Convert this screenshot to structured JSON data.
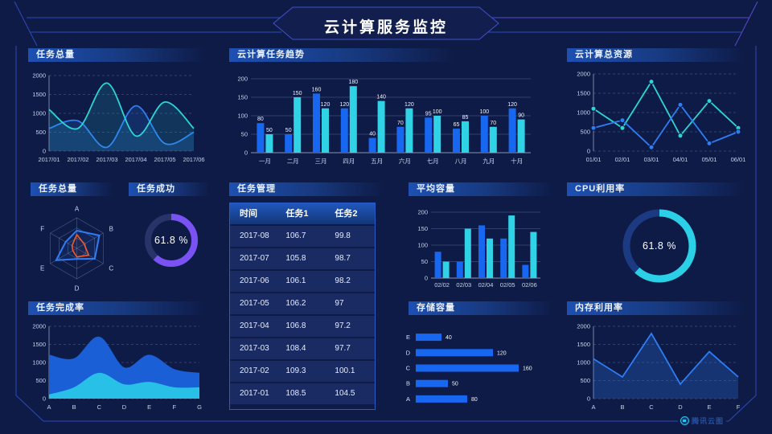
{
  "page": {
    "title": "云计算服务监控"
  },
  "watermark": {
    "label": "腾讯云图"
  },
  "panels": {
    "task_total_line": {
      "title": "任务总量"
    },
    "task_trend": {
      "title": "云计算任务趋势"
    },
    "total_resources": {
      "title": "云计算总资源"
    },
    "task_total_radar": {
      "title": "任务总量"
    },
    "task_success": {
      "title": "任务成功"
    },
    "task_management": {
      "title": "任务管理"
    },
    "avg_capacity": {
      "title": "平均容量"
    },
    "cpu_usage": {
      "title": "CPU利用率"
    },
    "task_completion": {
      "title": "任务完成率"
    },
    "storage_capacity": {
      "title": "存储容量"
    },
    "memory_usage": {
      "title": "内存利用率"
    }
  },
  "table": {
    "columns": [
      "时间",
      "任务1",
      "任务2"
    ],
    "rows": [
      [
        "2017-08",
        "106.7",
        "99.8"
      ],
      [
        "2017-07",
        "105.8",
        "98.7"
      ],
      [
        "2017-06",
        "106.1",
        "98.2"
      ],
      [
        "2017-05",
        "106.2",
        "97"
      ],
      [
        "2017-04",
        "106.8",
        "97.2"
      ],
      [
        "2017-03",
        "108.4",
        "97.7"
      ],
      [
        "2017-02",
        "109.3",
        "100.1"
      ],
      [
        "2017-01",
        "108.5",
        "104.5"
      ]
    ]
  },
  "chart_data": [
    {
      "target": "task-total-line",
      "type": "line",
      "title": "任务总量",
      "smooth": true,
      "markers": false,
      "grid": "dashed",
      "x": [
        "2017/01",
        "2017/02",
        "2017/03",
        "2017/04",
        "2017/05",
        "2017/06"
      ],
      "series": [
        {
          "name": "series-blue",
          "color": "#2e7df5",
          "fill_opacity": 0.18,
          "values": [
            600,
            800,
            100,
            1200,
            200,
            500
          ]
        },
        {
          "name": "series-cyan",
          "color": "#2bd6d4",
          "fill_opacity": 0.14,
          "values": [
            1100,
            600,
            1800,
            400,
            1300,
            600
          ]
        }
      ],
      "ylim": [
        0,
        2000
      ],
      "yticks": [
        0,
        500,
        1000,
        1500,
        2000
      ]
    },
    {
      "target": "task-trend-bars",
      "type": "bar",
      "title": "云计算任务趋势",
      "value_labels": true,
      "categories": [
        "一月",
        "二月",
        "三月",
        "四月",
        "五月",
        "六月",
        "七月",
        "八月",
        "九月",
        "十月"
      ],
      "series": [
        {
          "name": "series-blue",
          "color": "#1767f0",
          "values": [
            80,
            50,
            160,
            120,
            40,
            70,
            95,
            65,
            100,
            120
          ]
        },
        {
          "name": "series-cyan",
          "color": "#30d2e6",
          "values": [
            50,
            150,
            120,
            180,
            140,
            120,
            100,
            85,
            70,
            90
          ]
        }
      ],
      "ylim": [
        0,
        200
      ],
      "yticks": [
        0,
        50,
        100,
        150,
        200
      ]
    },
    {
      "target": "total-resources-line",
      "type": "line",
      "title": "云计算总资源",
      "smooth": false,
      "markers": true,
      "grid": "dashed",
      "x": [
        "01/01",
        "02/01",
        "03/01",
        "04/01",
        "05/01",
        "06/01"
      ],
      "series": [
        {
          "name": "series-cyan",
          "color": "#2bd6d4",
          "fill_opacity": 0,
          "values": [
            1100,
            600,
            1800,
            400,
            1300,
            600
          ]
        },
        {
          "name": "series-blue",
          "color": "#2e7df5",
          "fill_opacity": 0,
          "values": [
            600,
            800,
            100,
            1200,
            200,
            500
          ]
        }
      ],
      "ylim": [
        0,
        2000
      ],
      "yticks": [
        0,
        500,
        1000,
        1500,
        2000
      ]
    },
    {
      "target": "task-radar",
      "type": "radar",
      "title": "任务总量",
      "axes": [
        "A",
        "B",
        "C",
        "D",
        "E",
        "F"
      ],
      "max": 100,
      "series": [
        {
          "name": "series-blue",
          "color": "#2e7df5",
          "values": [
            58,
            85,
            68,
            35,
            78,
            42
          ]
        },
        {
          "name": "series-orange",
          "color": "#f25a28",
          "values": [
            45,
            28,
            45,
            28,
            15,
            18
          ]
        }
      ]
    },
    {
      "target": "task-success-donut",
      "type": "donut",
      "title": "任务成功",
      "value": 61.8,
      "label": "61.8 %",
      "color": "#7a52f4",
      "track_color": "#283369"
    },
    {
      "target": "avg-capacity-bars",
      "type": "bar",
      "title": "平均容量",
      "value_labels": false,
      "categories": [
        "02/02",
        "02/03",
        "02/04",
        "02/05",
        "02/06"
      ],
      "series": [
        {
          "name": "series-blue",
          "color": "#1767f0",
          "values": [
            80,
            50,
            160,
            120,
            40
          ]
        },
        {
          "name": "series-cyan",
          "color": "#30d2e6",
          "values": [
            50,
            150,
            120,
            190,
            140
          ]
        }
      ],
      "ylim": [
        0,
        200
      ],
      "yticks": [
        0,
        50,
        100,
        150,
        200
      ]
    },
    {
      "target": "cpu-donut",
      "type": "donut",
      "title": "CPU利用率",
      "value": 61.8,
      "label": "61.8 %",
      "color": "#2bd0e6",
      "track_color": "#1c3a82"
    },
    {
      "target": "task-completion-area",
      "type": "area",
      "title": "任务完成率",
      "smooth": true,
      "markers": false,
      "grid": "dashed",
      "x": [
        "A",
        "B",
        "C",
        "D",
        "E",
        "F",
        "G"
      ],
      "series": [
        {
          "name": "series-blue",
          "color": "#1b5fd6",
          "fill_opacity": 1,
          "values": [
            1200,
            1100,
            1700,
            850,
            1200,
            800,
            700
          ]
        },
        {
          "name": "series-cyan",
          "color": "#29c0e8",
          "fill_opacity": 1,
          "values": [
            100,
            300,
            700,
            380,
            450,
            300,
            300
          ]
        }
      ],
      "ylim": [
        0,
        2000
      ],
      "yticks": [
        0,
        500,
        1000,
        1500,
        2000
      ]
    },
    {
      "target": "storage-hbars",
      "type": "hbar",
      "title": "存储容量",
      "categories": [
        "E",
        "D",
        "C",
        "B",
        "A"
      ],
      "values": [
        40,
        120,
        160,
        50,
        80
      ],
      "xmax": 170,
      "color": "#1767f0"
    },
    {
      "target": "memory-line",
      "type": "line",
      "title": "内存利用率",
      "smooth": false,
      "markers": false,
      "grid": "dashed",
      "x": [
        "A",
        "B",
        "C",
        "D",
        "E",
        "F"
      ],
      "series": [
        {
          "name": "series-blue",
          "color": "#2e7df5",
          "fill_opacity": 0.25,
          "values": [
            1100,
            600,
            1800,
            400,
            1300,
            600
          ]
        }
      ],
      "ylim": [
        0,
        2000
      ],
      "yticks": [
        0,
        500,
        1000,
        1500,
        2000
      ]
    }
  ]
}
